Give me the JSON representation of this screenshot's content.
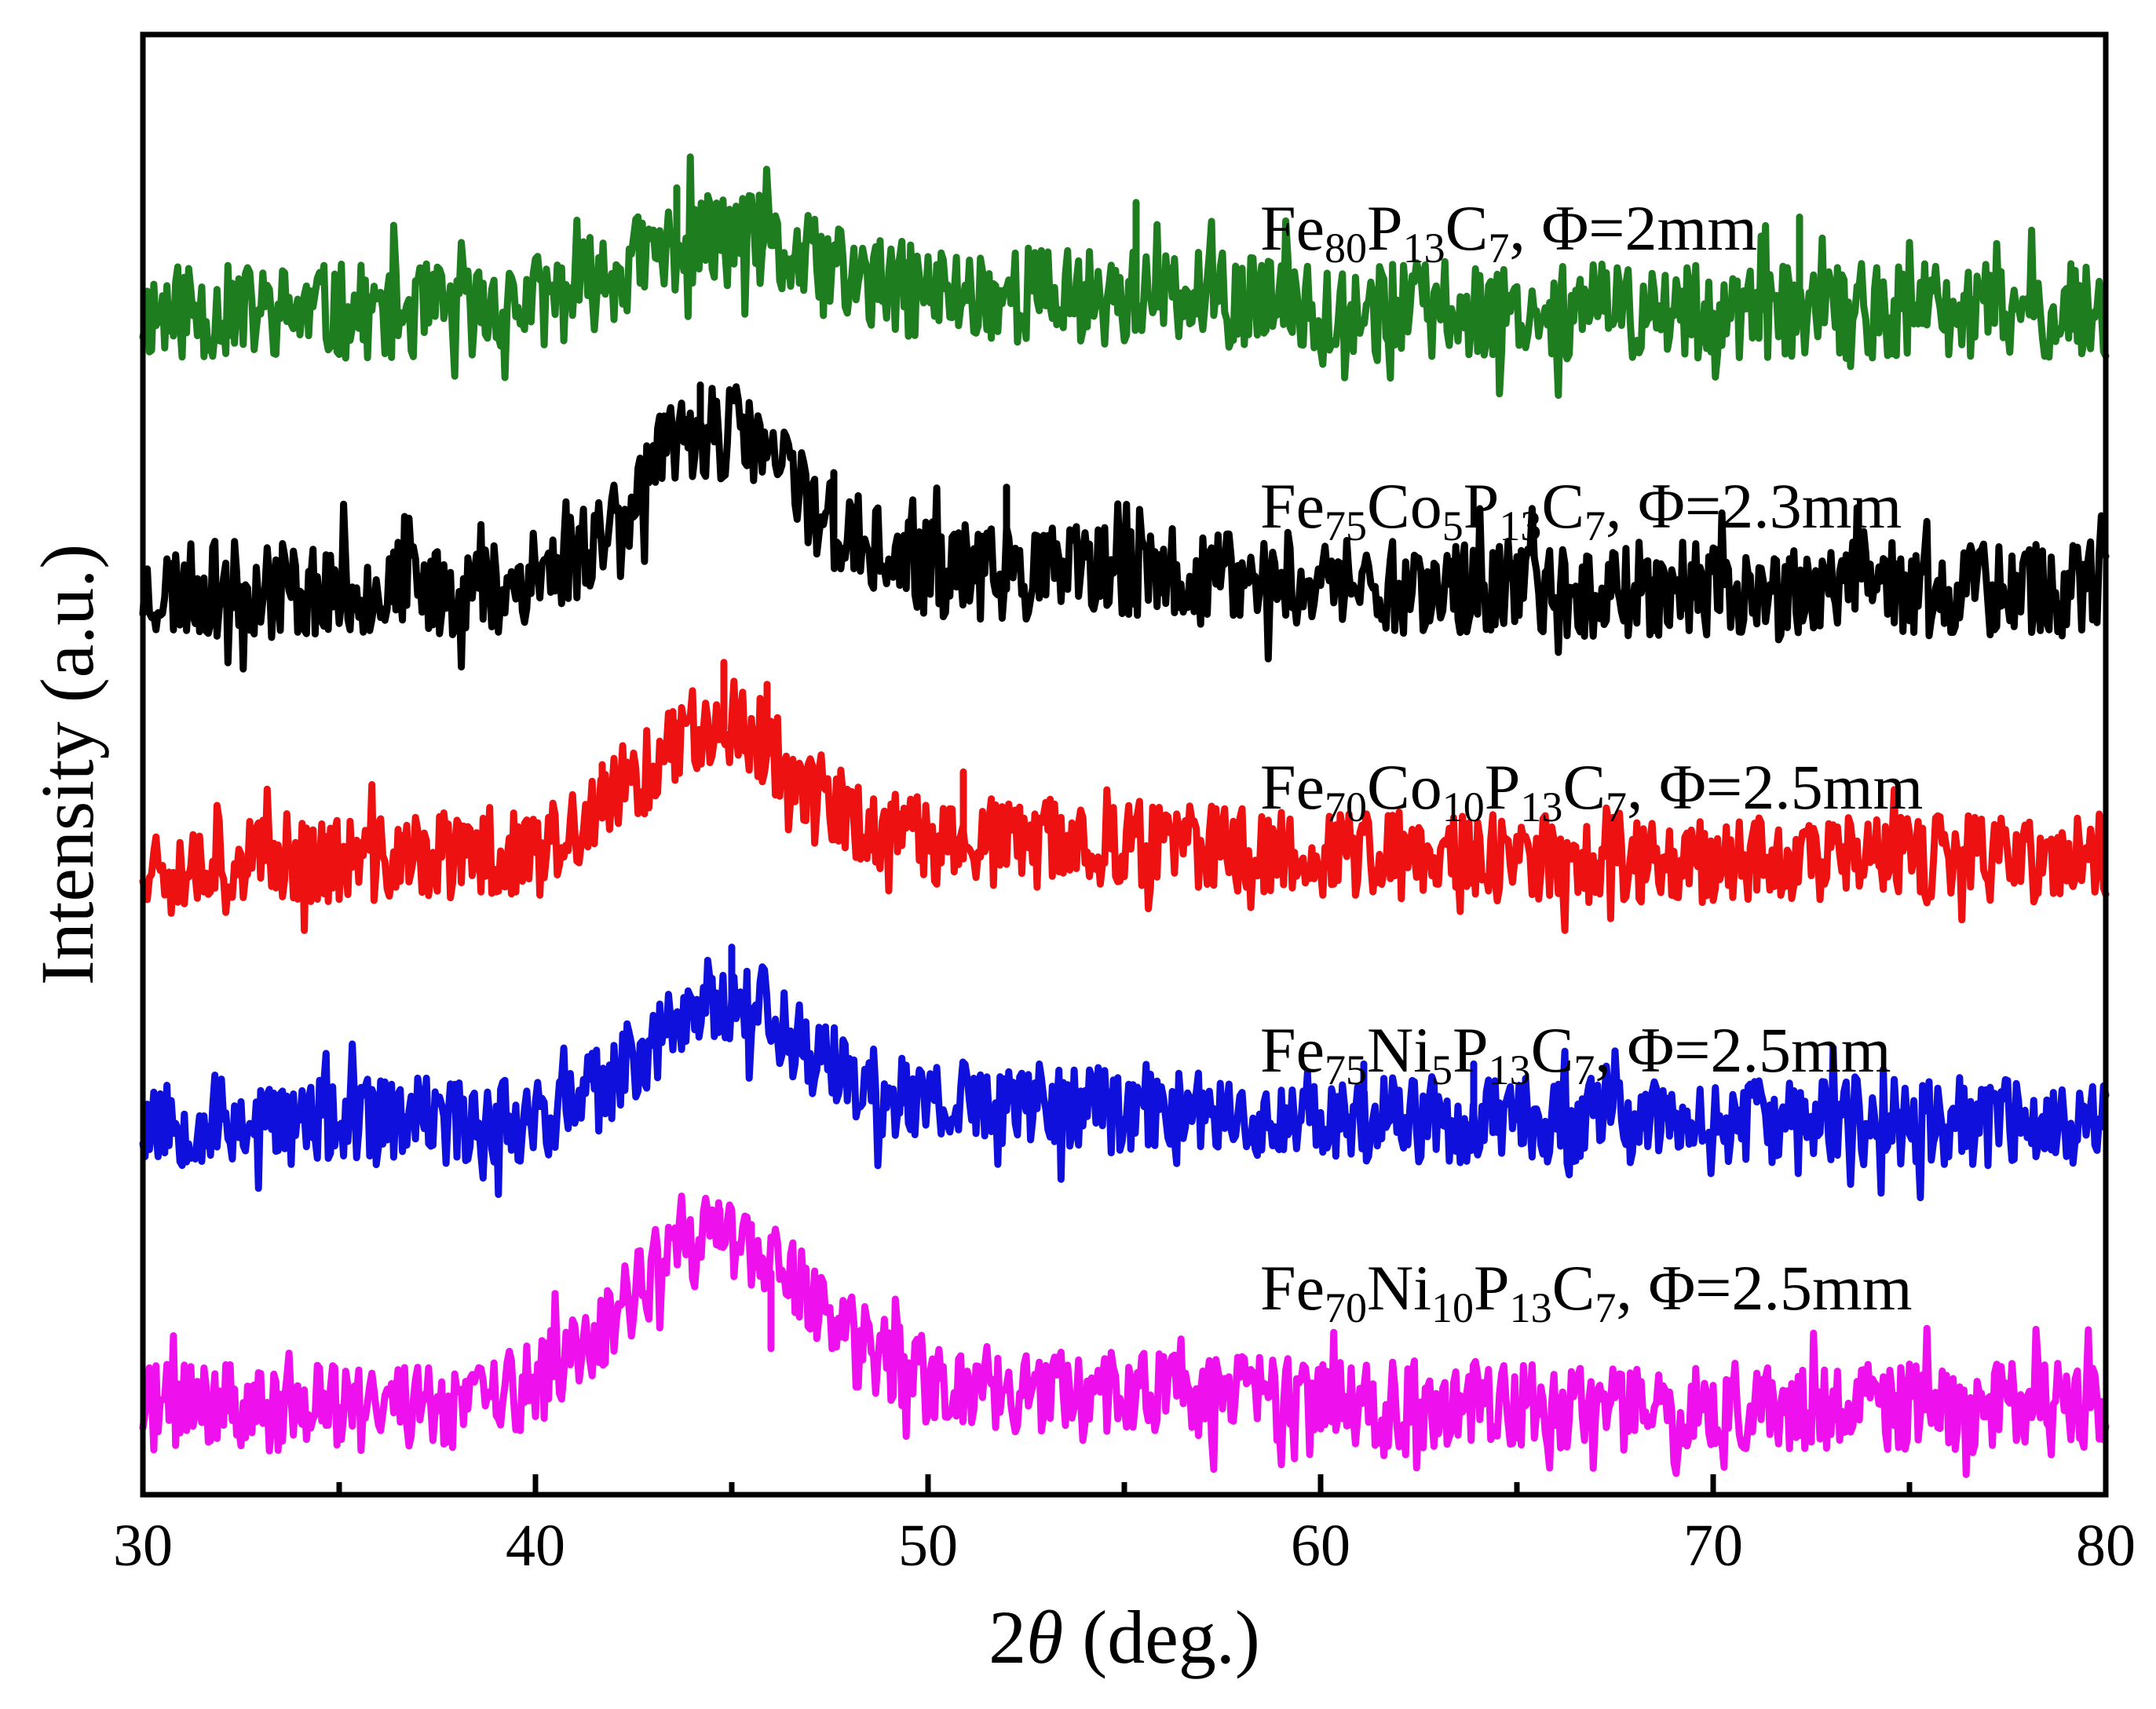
{
  "chart_data": {
    "type": "line",
    "title": "",
    "xlabel": {
      "prefix": "2",
      "symbol": "θ",
      "suffix": " (deg.)"
    },
    "ylabel": "Intensity (a.u.)",
    "xlim": [
      30,
      80
    ],
    "ylim": [
      0,
      10
    ],
    "x_ticks": [
      30,
      40,
      50,
      60,
      70,
      80
    ],
    "x_minor_ticks": [
      35,
      45,
      55,
      65,
      75
    ],
    "y_ticks_shown": false,
    "grid": false,
    "legend": "inline labels above each trace",
    "series": [
      {
        "name": "Fe80P13C7, Φ=2mm",
        "label_parts": [
          {
            "t": "Fe"
          },
          {
            "t": "80",
            "sub": true
          },
          {
            "t": "P"
          },
          {
            "t": "13",
            "sub": true
          },
          {
            "t": "C"
          },
          {
            "t": "7",
            "sub": true
          },
          {
            "t": ", Φ=2mm"
          }
        ],
        "color": "#1e7d1e",
        "baseline": 8.1,
        "amorphous_hump": {
          "center": 44.5,
          "amplitude": 0.45,
          "width": 3.2
        },
        "noise": 0.55,
        "seed": 11,
        "notable_spikes": [
          [
            43.6,
            8.95
          ],
          [
            55.3,
            8.85
          ],
          [
            72.2,
            8.75
          ],
          [
            45.7,
            8.9
          ]
        ]
      },
      {
        "name": "Fe75Co5P13C7, Φ=2.3mm",
        "label_parts": [
          {
            "t": "Fe"
          },
          {
            "t": "75",
            "sub": true
          },
          {
            "t": "Co"
          },
          {
            "t": "5",
            "sub": true
          },
          {
            "t": "P"
          },
          {
            "t": "13",
            "sub": true
          },
          {
            "t": "C"
          },
          {
            "t": "7",
            "sub": true
          },
          {
            "t": ", Φ=2.3mm"
          }
        ],
        "color": "#000000",
        "baseline": 6.2,
        "amorphous_hump": {
          "center": 44.6,
          "amplitude": 1.05,
          "width": 2.9
        },
        "noise": 0.55,
        "seed": 23,
        "notable_spikes": [
          [
            44.2,
            7.6
          ],
          [
            52.0,
            6.9
          ],
          [
            47.6,
            7.0
          ]
        ]
      },
      {
        "name": "Fe70Co10P13C7, Φ=2.5mm",
        "label_parts": [
          {
            "t": "Fe"
          },
          {
            "t": "70",
            "sub": true
          },
          {
            "t": "Co"
          },
          {
            "t": "10",
            "sub": true
          },
          {
            "t": "P"
          },
          {
            "t": "13",
            "sub": true
          },
          {
            "t": "C"
          },
          {
            "t": "7",
            "sub": true
          },
          {
            "t": ", Φ=2.5mm"
          }
        ],
        "color": "#ee1111",
        "baseline": 4.35,
        "amorphous_hump": {
          "center": 44.6,
          "amplitude": 0.9,
          "width": 2.7
        },
        "noise": 0.5,
        "seed": 37,
        "notable_spikes": [
          [
            44.8,
            5.7
          ],
          [
            50.9,
            4.95
          ],
          [
            41.7,
            5.0
          ],
          [
            45.9,
            5.55
          ]
        ]
      },
      {
        "name": "Fe75Ni5P13C7, Φ=2.5mm",
        "label_parts": [
          {
            "t": "Fe"
          },
          {
            "t": "75",
            "sub": true
          },
          {
            "t": "Ni"
          },
          {
            "t": "5",
            "sub": true
          },
          {
            "t": "P"
          },
          {
            "t": "13",
            "sub": true
          },
          {
            "t": "C"
          },
          {
            "t": "7",
            "sub": true
          },
          {
            "t": ", Φ=2.5mm"
          }
        ],
        "color": "#1010dd",
        "baseline": 2.55,
        "amorphous_hump": {
          "center": 44.8,
          "amplitude": 0.8,
          "width": 2.7
        },
        "noise": 0.5,
        "seed": 53,
        "notable_spikes": [
          [
            45.0,
            3.75
          ],
          [
            63.9,
            2.95
          ],
          [
            61.1,
            2.95
          ]
        ]
      },
      {
        "name": "Fe70Ni10P13C7, Φ=2.5mm",
        "label_parts": [
          {
            "t": "Fe"
          },
          {
            "t": "70",
            "sub": true
          },
          {
            "t": "Ni"
          },
          {
            "t": "10",
            "sub": true
          },
          {
            "t": "P"
          },
          {
            "t": "13",
            "sub": true
          },
          {
            "t": "C"
          },
          {
            "t": "7",
            "sub": true
          },
          {
            "t": ", Φ=2.5mm"
          }
        ],
        "color": "#ee11ee",
        "baseline": 0.6,
        "amorphous_hump": {
          "center": 44.6,
          "amplitude": 1.1,
          "width": 3.3
        },
        "noise": 0.5,
        "seed": 71,
        "notable_spikes": [
          [
            44.7,
            1.95
          ],
          [
            45.5,
            1.85
          ],
          [
            46.0,
            1.0
          ]
        ]
      }
    ]
  }
}
